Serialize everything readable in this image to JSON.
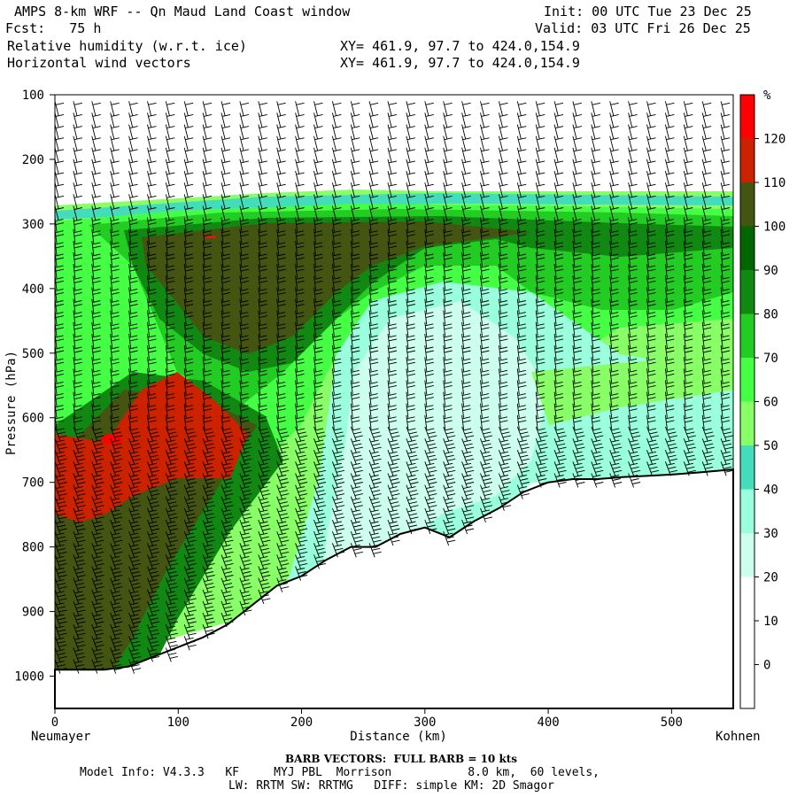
{
  "header": {
    "title": "AMPS 8-km WRF -- Qn Maud Land Coast window",
    "fcst_label": "Fcst:",
    "fcst_value": "75 h",
    "field1": "Relative humidity (w.r.t. ice)",
    "field2": "Horizontal wind vectors",
    "init": "Init: 00 UTC Tue 23 Dec 25",
    "valid": "Valid: 03 UTC Fri 26 Dec 25",
    "xy1": "XY= 461.9, 97.7 to 424.0,154.9",
    "xy2": "XY= 461.9, 97.7 to 424.0,154.9"
  },
  "footer": {
    "barb": "BARB VECTORS:  FULL BARB = 10 kts",
    "model_line1": "Model Info: V4.3.3   KF     MYJ PBL  Morrison           8.0 km,  60 levels,",
    "model_line2": "LW: RRTM SW: RRTMG   DIFF: simple KM: 2D Smagor"
  },
  "chart_data": {
    "type": "heatmap",
    "title": "Relative humidity (w.r.t. ice) and horizontal wind vectors cross-section",
    "xlabel": "Distance (km)",
    "ylabel": "Pressure (hPa)",
    "x_start_label": "Neumayer",
    "x_end_label": "Kohnen",
    "xlim": [
      0,
      550
    ],
    "ylim": [
      100,
      1050
    ],
    "y_reversed": true,
    "x_ticks": [
      0,
      100,
      200,
      300,
      400,
      500
    ],
    "y_ticks": [
      100,
      200,
      300,
      400,
      500,
      600,
      700,
      800,
      900,
      1000
    ],
    "colorbar": {
      "unit": "%",
      "levels": [
        0,
        10,
        20,
        30,
        40,
        50,
        60,
        70,
        80,
        90,
        100,
        110,
        120
      ],
      "colors": [
        "#ffffff",
        "#ffffff",
        "#ffffff",
        "#ccffee",
        "#99ffdd",
        "#44ddbb",
        "#88ff66",
        "#44ff44",
        "#22cc22",
        "#118811",
        "#006600",
        "#445511",
        "#cc2200",
        "#ff0000"
      ]
    },
    "terrain_surface": {
      "x_km": [
        0,
        20,
        40,
        60,
        80,
        100,
        120,
        140,
        160,
        180,
        200,
        220,
        240,
        260,
        280,
        300,
        320,
        340,
        360,
        380,
        400,
        420,
        440,
        460,
        480,
        500,
        520,
        550
      ],
      "p_hPa": [
        990,
        990,
        990,
        985,
        970,
        955,
        940,
        920,
        890,
        860,
        845,
        820,
        800,
        800,
        780,
        770,
        785,
        760,
        740,
        715,
        700,
        695,
        695,
        692,
        690,
        688,
        685,
        680
      ]
    },
    "rh_features": [
      {
        "name": "upper dry layer above",
        "p_top": 100,
        "p_bottom": 270,
        "rh": "<20"
      },
      {
        "name": "saturated layer",
        "x_range": [
          100,
          400
        ],
        "p_range": [
          260,
          450
        ],
        "rh": "100-110"
      },
      {
        "name": "supersaturated pocket",
        "x_range": [
          0,
          160
        ],
        "p_range": [
          530,
          760
        ],
        "rh": "110-120"
      },
      {
        "name": "dry tongue",
        "x_range": [
          230,
          380
        ],
        "p_range": [
          380,
          780
        ],
        "rh": "30-40"
      }
    ]
  }
}
